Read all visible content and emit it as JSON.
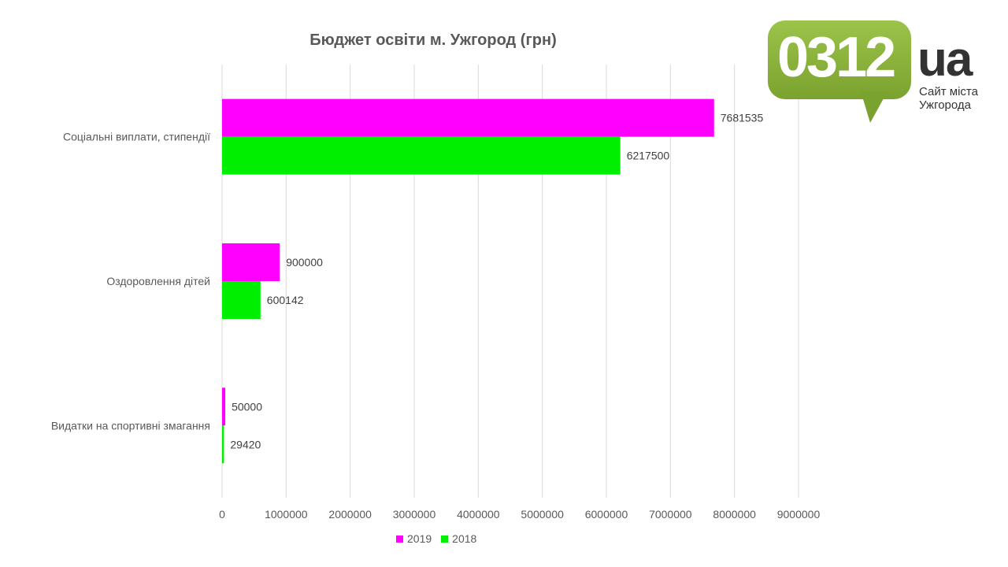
{
  "chart_data": {
    "type": "bar",
    "orientation": "horizontal",
    "title": "Бюджет освіти м. Ужгород (грн)",
    "categories": [
      "Соціальні   виплати, стипендії",
      "Оздоровлення дітей",
      "Видатки на спортивні змагання"
    ],
    "series": [
      {
        "name": "2019",
        "color": "#ff00ff",
        "values": [
          7681535,
          900000,
          50000
        ],
        "labels": [
          "7681535",
          "900000",
          "50000"
        ]
      },
      {
        "name": "2018",
        "color": "#00ee00",
        "values": [
          6217500,
          600142,
          29420
        ],
        "labels": [
          "6217500",
          "600142",
          "29420"
        ]
      }
    ],
    "xlim": [
      0,
      9000000
    ],
    "xticks": [
      "0",
      "1000000",
      "2000000",
      "3000000",
      "4000000",
      "5000000",
      "6000000",
      "7000000",
      "8000000",
      "9000000"
    ],
    "grid": true,
    "legend_position": "bottom"
  },
  "logo": {
    "number": "0312",
    "suffix": "ua",
    "subtitle": "Сайт міста Ужгорода",
    "color": "#8cb43c",
    "icon": "speech-bubble-logo-icon"
  }
}
